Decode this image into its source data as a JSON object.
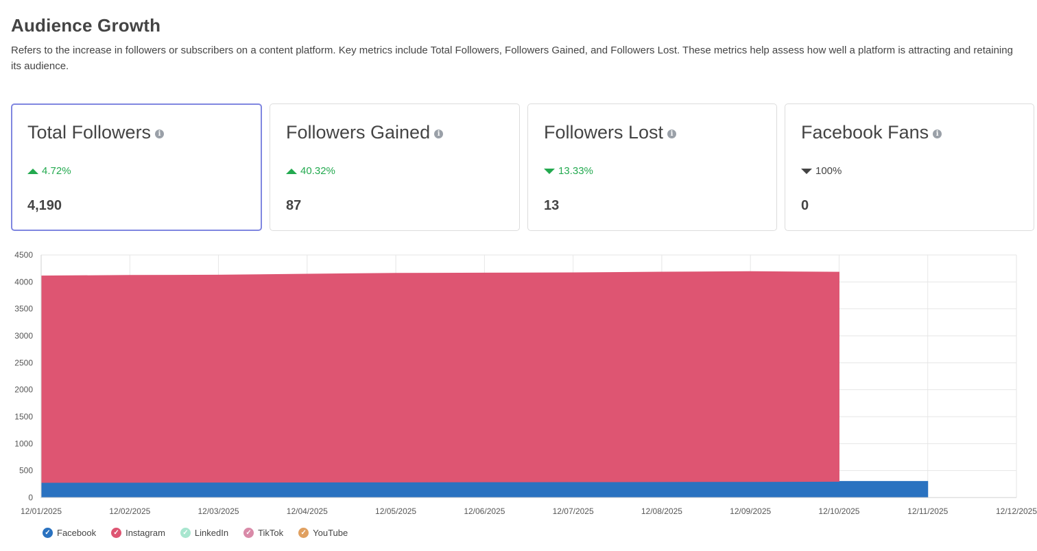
{
  "header": {
    "title": "Audience Growth",
    "description": "Refers to the increase in followers or subscribers on a content platform. Key metrics include Total Followers, Followers Gained, and Followers Lost. These metrics help assess how well a platform is attracting and retaining its audience."
  },
  "cards": [
    {
      "title": "Total Followers",
      "change": "4.72%",
      "direction": "up",
      "value": "4,190",
      "active": true
    },
    {
      "title": "Followers Gained",
      "change": "40.32%",
      "direction": "up",
      "value": "87",
      "active": false
    },
    {
      "title": "Followers Lost",
      "change": "13.33%",
      "direction": "down",
      "value": "13",
      "active": false
    },
    {
      "title": "Facebook Fans",
      "change": "100%",
      "direction": "down-neutral",
      "value": "0",
      "active": false
    }
  ],
  "chart_data": {
    "type": "area",
    "stacked": true,
    "x": [
      "12/01/2025",
      "12/02/2025",
      "12/03/2025",
      "12/04/2025",
      "12/05/2025",
      "12/06/2025",
      "12/07/2025",
      "12/08/2025",
      "12/09/2025",
      "12/10/2025",
      "12/11/2025",
      "12/12/2025"
    ],
    "ylim": [
      0,
      4500
    ],
    "yticks": [
      0,
      500,
      1000,
      1500,
      2000,
      2500,
      3000,
      3500,
      4000,
      4500
    ],
    "grid": true,
    "series": [
      {
        "name": "Facebook",
        "color": "#2a72c0",
        "values": [
          280,
          282,
          284,
          286,
          288,
          290,
          292,
          294,
          296,
          300,
          300,
          null
        ]
      },
      {
        "name": "Instagram",
        "color": "#de5572",
        "values": [
          3830,
          3840,
          3842,
          3858,
          3872,
          3874,
          3878,
          3888,
          3896,
          3880,
          null,
          null
        ]
      },
      {
        "name": "LinkedIn",
        "color": "#a8e6cf",
        "values": [
          0,
          0,
          0,
          0,
          0,
          0,
          0,
          0,
          0,
          0,
          null,
          null
        ]
      },
      {
        "name": "TikTok",
        "color": "#d98aa8",
        "values": [
          0,
          0,
          0,
          0,
          0,
          0,
          0,
          0,
          0,
          0,
          null,
          null
        ]
      },
      {
        "name": "YouTube",
        "color": "#e0a060",
        "values": [
          0,
          0,
          0,
          0,
          0,
          0,
          0,
          0,
          0,
          0,
          null,
          null
        ]
      }
    ],
    "legend_position": "bottom-left"
  }
}
